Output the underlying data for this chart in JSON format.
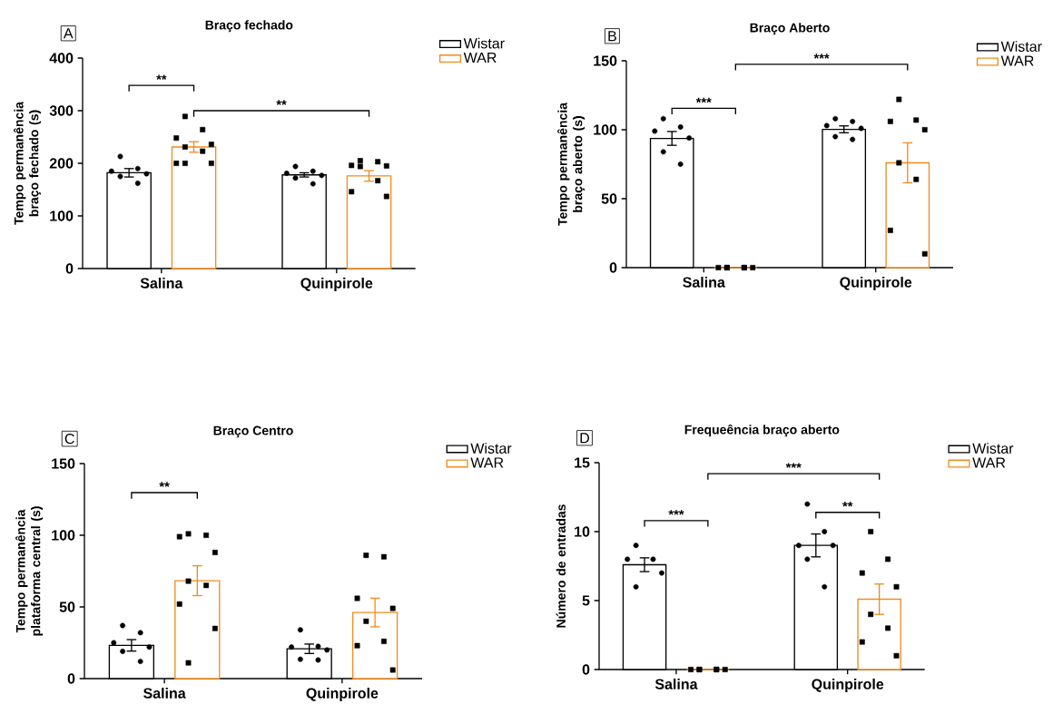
{
  "chart_data": [
    {
      "type": "bar",
      "title": "Braço fechado",
      "ylabel": "Tempo permanência braço fechado (s)",
      "categories": [
        "Salina",
        "Quinpirole"
      ],
      "ylim": [
        0,
        400
      ],
      "yticks": [
        0,
        100,
        200,
        300,
        400
      ],
      "legend": "top right",
      "series": [
        {
          "name": "Wistar",
          "color": "#000000",
          "values": [
            182,
            178
          ],
          "errors": [
            8,
            4
          ]
        },
        {
          "name": "WAR",
          "color": "#f28b1e",
          "values": [
            231,
            176
          ],
          "errors": [
            10,
            10
          ]
        },
        {
          "type": "scatter",
          "color": "#000000",
          "marker": "circle",
          "x": [
            "Salina",
            "Salina",
            "Salina",
            "Salina",
            "Salina",
            "Salina",
            "Quinpirole",
            "Quinpirole",
            "Quinpirole",
            "Quinpirole",
            "Quinpirole",
            "Quinpirole"
          ],
          "values": [
            213,
            190,
            185,
            180,
            175,
            162,
            194,
            185,
            181,
            177,
            172,
            161
          ]
        },
        {
          "type": "scatter",
          "color": "#000000",
          "marker": "square",
          "x": [
            "Salina",
            "Salina",
            "Salina",
            "Salina",
            "Salina",
            "Salina",
            "Salina",
            "Salina",
            "Salina",
            "Quinpirole",
            "Quinpirole",
            "Quinpirole",
            "Quinpirole",
            "Quinpirole",
            "Quinpirole",
            "Quinpirole",
            "Quinpirole"
          ],
          "values": [
            289,
            264,
            248,
            236,
            231,
            223,
            200,
            200,
            200,
            205,
            203,
            196,
            195,
            194,
            167,
            146,
            137
          ]
        }
      ],
      "annotations": [
        "A",
        "**",
        "**"
      ]
    },
    {
      "type": "bar",
      "title": "Braço Aberto",
      "ylabel": "Tempo permanência braço aberto (s)",
      "categories": [
        "Salina",
        "Quinpirole"
      ],
      "ylim": [
        0,
        150
      ],
      "yticks": [
        0,
        50,
        100,
        150
      ],
      "legend": "top right",
      "series": [
        {
          "name": "Wistar",
          "color": "#000000",
          "values": [
            93.7,
            100.3
          ],
          "errors": [
            5,
            2.5
          ]
        },
        {
          "name": "WAR",
          "color": "#f28b1e",
          "values": [
            0,
            76
          ],
          "errors": [
            null,
            14.5
          ]
        },
        {
          "type": "scatter",
          "color": "#000000",
          "marker": "circle",
          "x": [
            "Salina",
            "Salina",
            "Salina",
            "Salina",
            "Salina",
            "Salina",
            "Quinpirole",
            "Quinpirole",
            "Quinpirole",
            "Quinpirole",
            "Quinpirole",
            "Quinpirole"
          ],
          "values": [
            108,
            102,
            99,
            94,
            84,
            75,
            108,
            106,
            103,
            101,
            95,
            93
          ]
        },
        {
          "type": "scatter",
          "color": "#000000",
          "marker": "square",
          "x": [
            "Salina",
            "Salina",
            "Salina",
            "Salina",
            "Salina",
            "Salina",
            "Quinpirole",
            "Quinpirole",
            "Quinpirole",
            "Quinpirole",
            "Quinpirole",
            "Quinpirole",
            "Quinpirole",
            "Quinpirole"
          ],
          "values": [
            0,
            0,
            0,
            0,
            0,
            0,
            122,
            107,
            106,
            100,
            76,
            64,
            27,
            10
          ]
        }
      ],
      "annotations": [
        "B",
        "***",
        "***"
      ]
    },
    {
      "type": "bar",
      "title": "Braço Centro",
      "ylabel": "Tempo permanência plataforma central (s)",
      "categories": [
        "Salina",
        "Quinpirole"
      ],
      "ylim": [
        0,
        150
      ],
      "yticks": [
        0,
        50,
        100,
        150
      ],
      "legend": "top right",
      "series": [
        {
          "name": "Wistar",
          "color": "#000000",
          "values": [
            23.2,
            20.8
          ],
          "errors": [
            4,
            3.3
          ]
        },
        {
          "name": "WAR",
          "color": "#f28b1e",
          "values": [
            68.3,
            46.1
          ],
          "errors": [
            10.4,
            10
          ]
        },
        {
          "type": "scatter",
          "color": "#000000",
          "marker": "circle",
          "x": [
            "Salina",
            "Salina",
            "Salina",
            "Salina",
            "Salina",
            "Salina",
            "Quinpirole",
            "Quinpirole",
            "Quinpirole",
            "Quinpirole",
            "Quinpirole",
            "Quinpirole"
          ],
          "values": [
            37,
            32,
            25,
            22,
            19,
            12,
            34,
            22.5,
            22,
            20,
            13.5,
            13
          ]
        },
        {
          "type": "scatter",
          "color": "#000000",
          "marker": "square",
          "x": [
            "Salina",
            "Salina",
            "Salina",
            "Salina",
            "Salina",
            "Salina",
            "Salina",
            "Salina",
            "Salina",
            "Quinpirole",
            "Quinpirole",
            "Quinpirole",
            "Quinpirole",
            "Quinpirole",
            "Quinpirole",
            "Quinpirole",
            "Quinpirole"
          ],
          "values": [
            101,
            100,
            99,
            88,
            68,
            65,
            52,
            35,
            11,
            86,
            85,
            56,
            49,
            40,
            26,
            23,
            6
          ]
        }
      ],
      "annotations": [
        "C",
        "**"
      ]
    },
    {
      "type": "bar",
      "title": "Frequeência braço aberto",
      "ylabel": "Número de entradas",
      "categories": [
        "Salina",
        "Quinpirole"
      ],
      "ylim": [
        0,
        15
      ],
      "yticks": [
        0,
        5,
        10,
        15
      ],
      "legend": "top right",
      "series": [
        {
          "name": "Wistar",
          "color": "#000000",
          "values": [
            7.6,
            9
          ],
          "errors": [
            0.5,
            0.83
          ]
        },
        {
          "name": "WAR",
          "color": "#f28b1e",
          "values": [
            0,
            5.1
          ],
          "errors": [
            null,
            1.1
          ]
        },
        {
          "type": "scatter",
          "color": "#000000",
          "marker": "circle",
          "x": [
            "Salina",
            "Salina",
            "Salina",
            "Salina",
            "Salina",
            "Quinpirole",
            "Quinpirole",
            "Quinpirole",
            "Quinpirole",
            "Quinpirole",
            "Quinpirole"
          ],
          "values": [
            9,
            8,
            8,
            7,
            6,
            12,
            10,
            9,
            9,
            8,
            6
          ]
        },
        {
          "type": "scatter",
          "color": "#000000",
          "marker": "square",
          "x": [
            "Salina",
            "Salina",
            "Salina",
            "Salina",
            "Salina",
            "Salina",
            "Quinpirole",
            "Quinpirole",
            "Quinpirole",
            "Quinpirole",
            "Quinpirole",
            "Quinpirole",
            "Quinpirole",
            "Quinpirole"
          ],
          "values": [
            0,
            0,
            0,
            0,
            0,
            0,
            10,
            8,
            7,
            6,
            4,
            3,
            2,
            1
          ]
        }
      ],
      "annotations": [
        "D",
        "***",
        "**",
        "***"
      ]
    }
  ]
}
